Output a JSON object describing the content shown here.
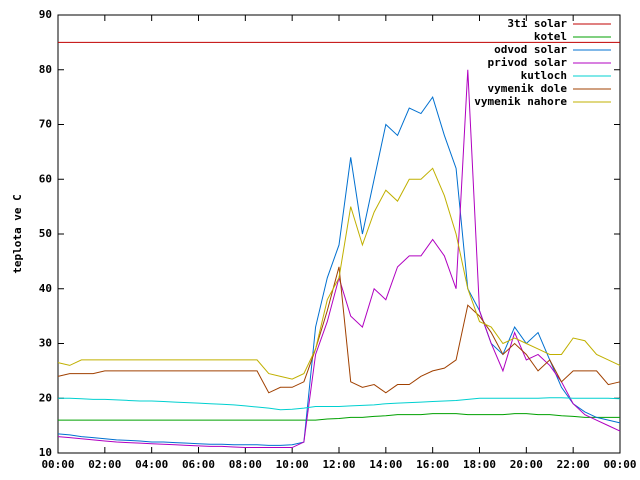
{
  "chart_data": {
    "type": "line",
    "y_label": "teplota ve C",
    "xlim": [
      0,
      24
    ],
    "xticks": [
      {
        "value": 0,
        "label": "00:00"
      },
      {
        "value": 2,
        "label": "02:00"
      },
      {
        "value": 4,
        "label": "04:00"
      },
      {
        "value": 6,
        "label": "06:00"
      },
      {
        "value": 8,
        "label": "08:00"
      },
      {
        "value": 10,
        "label": "10:00"
      },
      {
        "value": 12,
        "label": "12:00"
      },
      {
        "value": 14,
        "label": "14:00"
      },
      {
        "value": 16,
        "label": "16:00"
      },
      {
        "value": 18,
        "label": "18:00"
      },
      {
        "value": 20,
        "label": "20:00"
      },
      {
        "value": 22,
        "label": "22:00"
      },
      {
        "value": 24,
        "label": "00:00"
      }
    ],
    "ylim": [
      10,
      90
    ],
    "yticks": [
      10,
      20,
      30,
      40,
      50,
      60,
      70,
      80,
      90
    ],
    "legend": "top right",
    "x": [
      0,
      0.5,
      1,
      1.5,
      2,
      2.5,
      3,
      3.5,
      4,
      4.5,
      5,
      5.5,
      6,
      6.5,
      7,
      7.5,
      8,
      8.5,
      9,
      9.5,
      10,
      10.5,
      11,
      11.5,
      12,
      12.5,
      13,
      13.5,
      14,
      14.5,
      15,
      15.5,
      16,
      16.5,
      17,
      17.5,
      18,
      18.5,
      19,
      19.5,
      20,
      20.5,
      21,
      21.5,
      22,
      22.5,
      23,
      23.5,
      24
    ],
    "series": [
      {
        "name": "3ti solar",
        "color": "#c00000",
        "values": [
          85,
          85,
          85,
          85,
          85,
          85,
          85,
          85,
          85,
          85,
          85,
          85,
          85,
          85,
          85,
          85,
          85,
          85,
          85,
          85,
          85,
          85,
          85,
          85,
          85,
          85,
          85,
          85,
          85,
          85,
          85,
          85,
          85,
          85,
          85,
          85,
          85,
          85,
          85,
          85,
          85,
          85,
          85,
          85,
          85,
          85,
          85,
          85,
          85
        ]
      },
      {
        "name": "kotel",
        "color": "#00a000",
        "values": [
          16,
          16,
          16,
          16,
          16,
          16,
          16,
          16,
          16,
          16,
          16,
          16,
          16,
          16,
          16,
          16,
          16,
          16,
          16,
          16,
          16,
          16,
          16,
          16.2,
          16.3,
          16.5,
          16.5,
          16.7,
          16.8,
          17,
          17,
          17,
          17.2,
          17.2,
          17.2,
          17,
          17,
          17,
          17,
          17.2,
          17.2,
          17,
          17,
          16.8,
          16.7,
          16.5,
          16.5,
          16.5,
          16.5
        ]
      },
      {
        "name": "odvod solar",
        "color": "#0070d0",
        "values": [
          13.5,
          13.3,
          13,
          12.8,
          12.6,
          12.4,
          12.3,
          12.2,
          12,
          12,
          11.9,
          11.8,
          11.7,
          11.6,
          11.6,
          11.5,
          11.5,
          11.5,
          11.4,
          11.4,
          11.5,
          12,
          33,
          42,
          48,
          64,
          50,
          60,
          70,
          68,
          73,
          72,
          75,
          68,
          62,
          40,
          36,
          30,
          28,
          33,
          30,
          32,
          27,
          22,
          19,
          17.5,
          16.5,
          16,
          15.5
        ]
      },
      {
        "name": "privod solar",
        "color": "#b000c0",
        "values": [
          13,
          12.8,
          12.6,
          12.4,
          12.2,
          12,
          11.9,
          11.8,
          11.7,
          11.6,
          11.5,
          11.4,
          11.3,
          11.2,
          11.2,
          11.1,
          11,
          11,
          11,
          11,
          11,
          12,
          28,
          34,
          42,
          35,
          33,
          40,
          38,
          44,
          46,
          46,
          49,
          46,
          40,
          80,
          36,
          30,
          25,
          32,
          27,
          28,
          26,
          23,
          19,
          17,
          16,
          15,
          14
        ]
      },
      {
        "name": "kutloch",
        "color": "#00d0d0",
        "values": [
          20,
          20,
          19.9,
          19.8,
          19.8,
          19.7,
          19.6,
          19.5,
          19.5,
          19.4,
          19.3,
          19.2,
          19.1,
          19,
          18.9,
          18.8,
          18.6,
          18.4,
          18.2,
          17.9,
          18,
          18.2,
          18.5,
          18.5,
          18.5,
          18.6,
          18.7,
          18.8,
          19,
          19.1,
          19.2,
          19.3,
          19.4,
          19.5,
          19.6,
          19.8,
          20,
          20,
          20,
          20,
          20,
          20,
          20.1,
          20.1,
          20,
          20,
          20,
          20,
          19.9
        ]
      },
      {
        "name": "vymenik dole",
        "color": "#a04000",
        "values": [
          24,
          24.5,
          24.5,
          24.5,
          25,
          25,
          25,
          25,
          25,
          25,
          25,
          25,
          25,
          25,
          25,
          25,
          25,
          25,
          21,
          22,
          22,
          23,
          29,
          36,
          44,
          23,
          22,
          22.5,
          21,
          22.5,
          22.5,
          24,
          25,
          25.5,
          27,
          37,
          35,
          32,
          28,
          30,
          28,
          25,
          27,
          23,
          25,
          25,
          25,
          22.5,
          23
        ]
      },
      {
        "name": "vymenik nahore",
        "color": "#c0b000",
        "values": [
          26.5,
          26,
          27,
          27,
          27,
          27,
          27,
          27,
          27,
          27,
          27,
          27,
          27,
          27,
          27,
          27,
          27,
          27,
          24.5,
          24,
          23.5,
          24.5,
          29,
          38,
          42,
          55,
          48,
          54,
          58,
          56,
          60,
          60,
          62,
          57,
          50,
          40,
          34,
          33,
          30,
          31,
          30,
          29,
          28,
          28,
          31,
          30.5,
          28,
          27,
          26
        ]
      }
    ]
  }
}
